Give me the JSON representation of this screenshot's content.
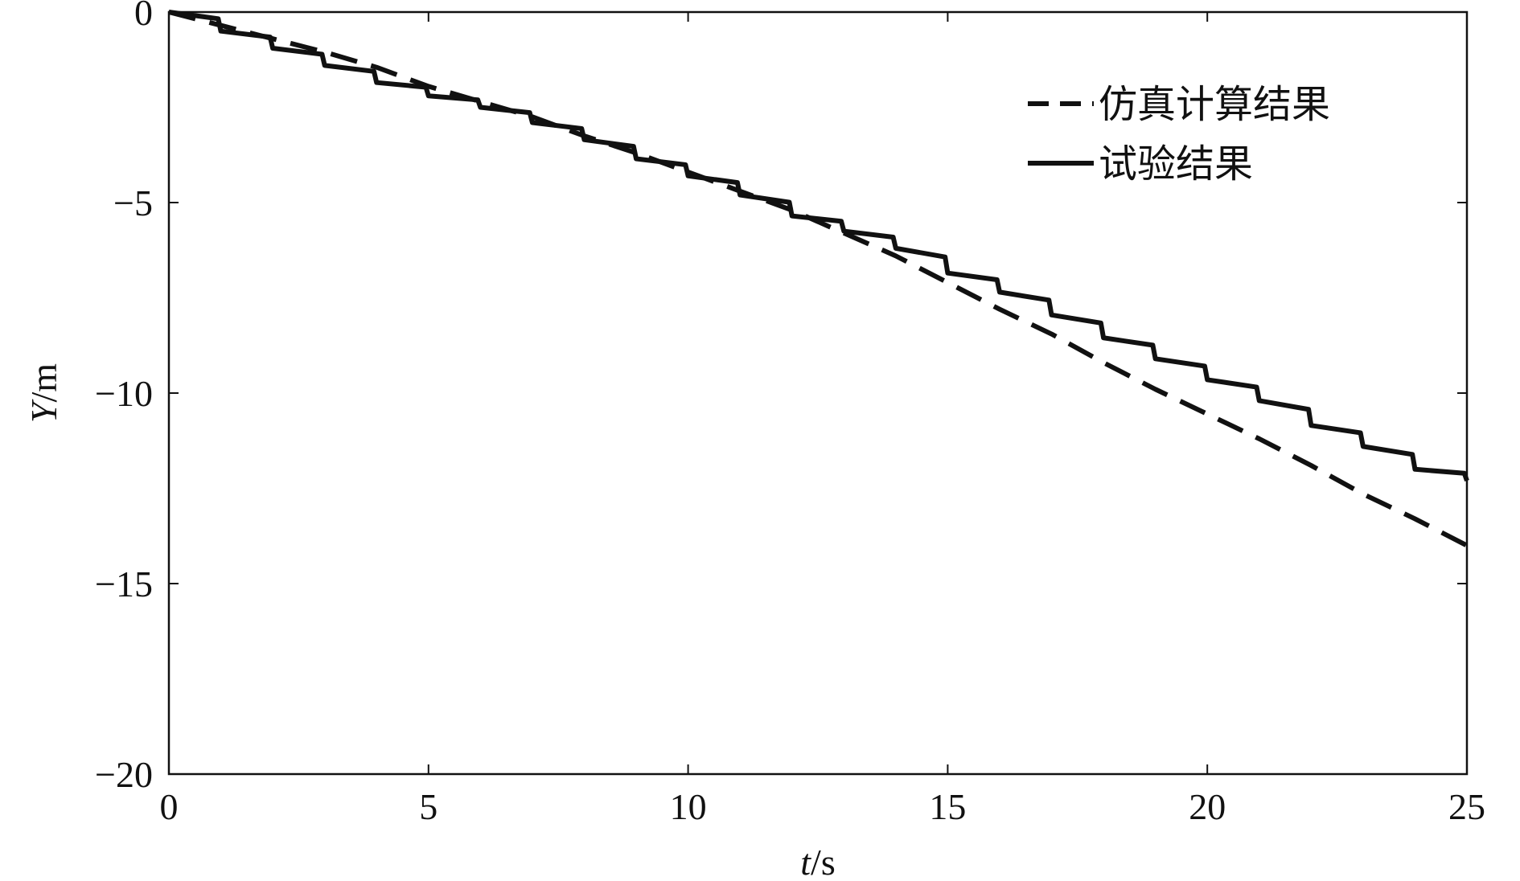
{
  "chart_data": {
    "type": "line",
    "xlabel": {
      "italic": "t",
      "unit": "/s"
    },
    "ylabel": {
      "italic": "Y",
      "unit": "/m"
    },
    "xlim": [
      0,
      25
    ],
    "ylim": [
      -20,
      0
    ],
    "xticks": [
      0,
      5,
      10,
      15,
      20,
      25
    ],
    "yticks": [
      0,
      -5,
      -10,
      -15,
      -20
    ],
    "xtick_labels": [
      "0",
      "5",
      "10",
      "15",
      "20",
      "25"
    ],
    "ytick_labels": [
      "0",
      "−5",
      "−10",
      "−15",
      "−20"
    ],
    "grid": false,
    "legend_position": "top-right",
    "series": [
      {
        "name": "仿真计算结果",
        "style": "dashed",
        "color": "#111111",
        "x": [
          0,
          1,
          2,
          3,
          4,
          5,
          6,
          7,
          8,
          9,
          10,
          11,
          12,
          13,
          14,
          15,
          16,
          17,
          18,
          19,
          20,
          21,
          22,
          23,
          24,
          25
        ],
        "y": [
          0,
          -0.35,
          -0.7,
          -1.05,
          -1.45,
          -1.95,
          -2.35,
          -2.75,
          -3.25,
          -3.7,
          -4.2,
          -4.7,
          -5.2,
          -5.8,
          -6.4,
          -7.1,
          -7.8,
          -8.45,
          -9.2,
          -9.9,
          -10.55,
          -11.2,
          -11.9,
          -12.65,
          -13.3,
          -14.0
        ]
      },
      {
        "name": "试验结果",
        "style": "solid",
        "color": "#111111",
        "x": [
          0,
          1,
          2,
          3,
          4,
          5,
          6,
          7,
          8,
          9,
          10,
          11,
          12,
          13,
          14,
          15,
          16,
          17,
          18,
          19,
          20,
          21,
          22,
          23,
          24,
          25
        ],
        "y": [
          0,
          -0.5,
          -0.95,
          -1.4,
          -1.85,
          -2.2,
          -2.5,
          -2.9,
          -3.35,
          -3.85,
          -4.3,
          -4.8,
          -5.35,
          -5.75,
          -6.2,
          -6.85,
          -7.35,
          -7.95,
          -8.55,
          -9.1,
          -9.65,
          -10.2,
          -10.85,
          -11.4,
          -12.0,
          -12.3
        ]
      }
    ]
  }
}
